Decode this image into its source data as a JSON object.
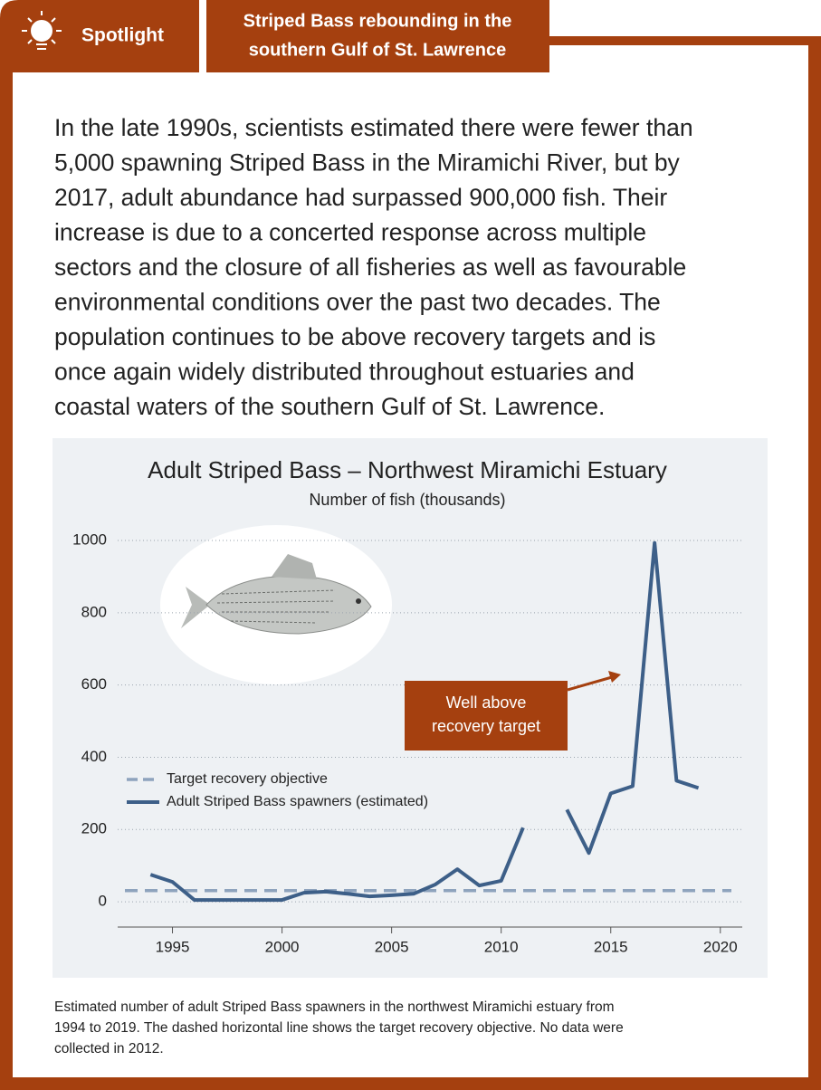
{
  "header": {
    "label": "Spotlight",
    "title_lines": [
      "Striped Bass rebounding in the",
      "southern Gulf of St. Lawrence"
    ]
  },
  "body": {
    "lines": [
      "In the late 1990s, scientists estimated there were fewer than",
      "5,000 spawning Striped Bass in the Miramichi River, but by",
      "2017, adult abundance had surpassed 900,000 fish. Their",
      "increase is due to a concerted response across multiple",
      "sectors and the closure of all fisheries as well as favourable",
      "environmental conditions over the past two decades. The",
      "population continues to be above recovery targets and is",
      "once again widely distributed throughout estuaries and",
      "coastal waters of the southern Gulf of St. Lawrence."
    ]
  },
  "chart_data": {
    "type": "line",
    "title": "Adult Striped Bass – Northwest Miramichi Estuary",
    "subtitle": "Number of fish (thousands)",
    "x": [
      1994,
      1995,
      1996,
      1997,
      1998,
      1999,
      2000,
      2001,
      2002,
      2003,
      2004,
      2005,
      2006,
      2007,
      2008,
      2009,
      2010,
      2011,
      2012,
      2013,
      2014,
      2015,
      2016,
      2017,
      2018,
      2019
    ],
    "series": [
      {
        "name": "Adult Striped Bass spawners (estimated)",
        "color": "#3d5f88",
        "values": [
          75,
          55,
          5,
          5,
          5,
          5,
          5,
          25,
          28,
          22,
          15,
          18,
          22,
          48,
          90,
          45,
          58,
          205,
          null,
          255,
          135,
          300,
          320,
          993,
          335,
          315
        ]
      }
    ],
    "target": {
      "name": "Target recovery objective",
      "value": 31,
      "color": "#8ea3bd"
    },
    "annotation": {
      "lines": [
        "Well above",
        "recovery target"
      ],
      "color": "#a5400f"
    },
    "xlim": [
      1992.5,
      2021
    ],
    "xticks": [
      1995,
      2000,
      2005,
      2010,
      2015,
      2020
    ],
    "ylim": [
      -70,
      1000
    ],
    "yticks": [
      0,
      200,
      400,
      600,
      800,
      1000
    ],
    "grid": true
  },
  "caption": {
    "lines": [
      "Estimated number of adult Striped Bass spawners in the northwest Miramichi estuary from",
      "1994 to 2019. The dashed horizontal line shows the target recovery objective. No data were",
      "collected in 2012."
    ]
  }
}
